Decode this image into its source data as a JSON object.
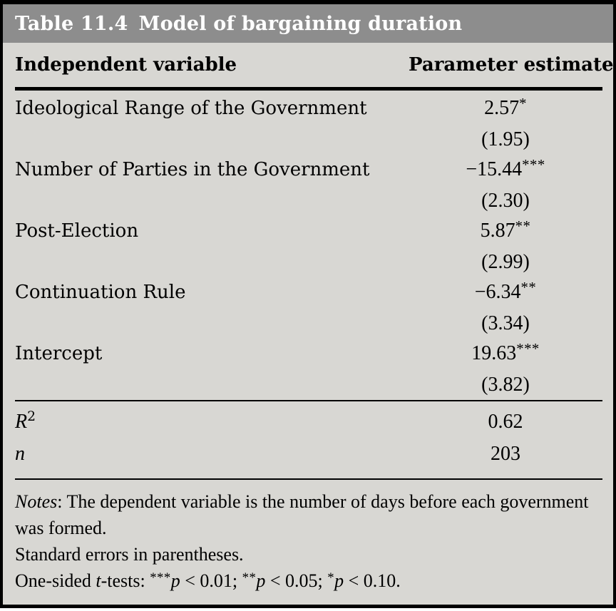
{
  "header": {
    "table_number": "Table 11.4",
    "table_title": "Model of bargaining duration"
  },
  "columns": {
    "variable": "Independent variable",
    "estimate": "Parameter estimate"
  },
  "rows": [
    {
      "label": "Ideological Range of the Government",
      "estimate": "2.57",
      "stars": "*",
      "se": "(1.95)"
    },
    {
      "label": "Number of Parties in the Government",
      "estimate": "−15.44",
      "stars": "***",
      "se": "(2.30)"
    },
    {
      "label": "Post-Election",
      "estimate": "5.87",
      "stars": "**",
      "se": "(2.99)"
    },
    {
      "label": "Continuation Rule",
      "estimate": "−6.34",
      "stars": "**",
      "se": "(3.34)"
    },
    {
      "label": "Intercept",
      "estimate": "19.63",
      "stars": "***",
      "se": "(3.82)"
    }
  ],
  "stats": [
    {
      "symbol": "R",
      "superscript": "2",
      "value": "0.62"
    },
    {
      "symbol": "n",
      "superscript": "",
      "value": "203"
    }
  ],
  "notes": {
    "label": "Notes",
    "line1_rest": ": The dependent variable is the number of days before each government",
    "line2": "was formed.",
    "line3": "Standard errors in parentheses.",
    "line4_prefix": "One-sided ",
    "line4_italic": "t",
    "line4_suffix": "-tests: ",
    "sig_levels": [
      {
        "stars": "***",
        "symbol": "p",
        "threshold": " < 0.01; "
      },
      {
        "stars": "**",
        "symbol": "p",
        "threshold": " < 0.05; "
      },
      {
        "stars": "*",
        "symbol": "p",
        "threshold": " < 0.10."
      }
    ]
  },
  "colors": {
    "title_band_bg": "#8d8d8d",
    "table_bg": "#d8d7d3",
    "border_and_rules": "#000000",
    "title_text": "#ffffff",
    "body_text": "#000000"
  }
}
